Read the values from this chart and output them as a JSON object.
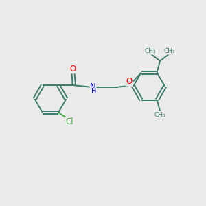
{
  "bg_color": "#ebebeb",
  "bond_color": "#3a7a6a",
  "bond_width": 1.4,
  "atom_colors": {
    "O": "#ff0000",
    "N": "#0000cc",
    "Cl": "#44aa44",
    "C": "#3a7a6a"
  },
  "font_size_atom": 8.5,
  "font_size_h": 7.0,
  "xlim": [
    0,
    10
  ],
  "ylim": [
    0,
    10
  ]
}
